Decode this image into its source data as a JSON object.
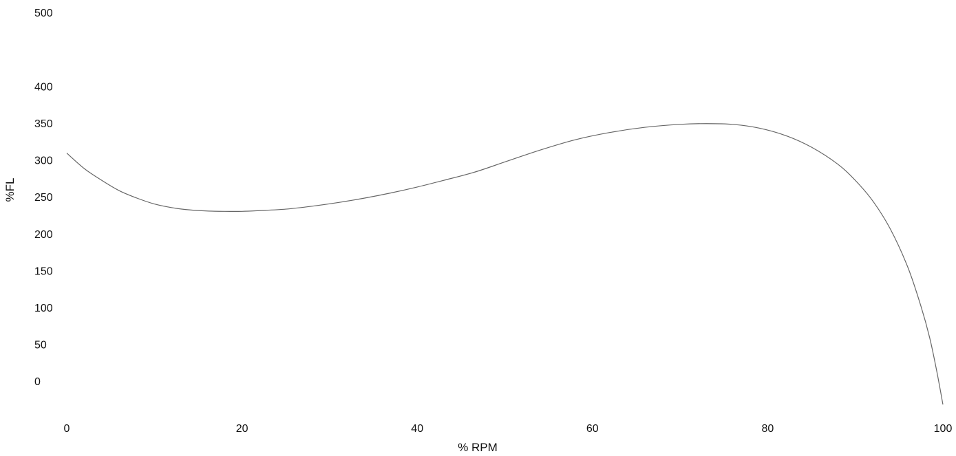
{
  "chart_data": {
    "type": "line",
    "title": "",
    "xlabel": "% RPM",
    "ylabel": "%FL",
    "xlim": [
      0,
      100
    ],
    "ylim": [
      -30,
      500
    ],
    "x_ticks": [
      0,
      20,
      40,
      60,
      80,
      100
    ],
    "y_ticks": [
      500,
      400,
      350,
      300,
      250,
      200,
      150,
      100,
      50,
      0
    ],
    "grid": false,
    "legend": "none",
    "series": [
      {
        "color": "#666666",
        "points": [
          [
            0,
            311
          ],
          [
            2,
            290
          ],
          [
            4,
            274
          ],
          [
            6,
            260
          ],
          [
            8,
            250
          ],
          [
            10,
            242
          ],
          [
            12,
            237
          ],
          [
            14,
            234
          ],
          [
            16,
            232.5
          ],
          [
            18,
            232
          ],
          [
            20,
            232
          ],
          [
            22,
            233
          ],
          [
            25,
            235
          ],
          [
            28,
            239
          ],
          [
            31,
            244
          ],
          [
            34,
            250
          ],
          [
            37,
            257
          ],
          [
            40,
            265
          ],
          [
            43,
            274
          ],
          [
            46.5,
            285
          ],
          [
            50,
            299
          ],
          [
            54,
            315
          ],
          [
            58,
            329
          ],
          [
            62,
            339
          ],
          [
            66,
            346
          ],
          [
            70,
            350
          ],
          [
            73,
            351
          ],
          [
            76,
            350
          ],
          [
            79,
            345
          ],
          [
            82,
            335
          ],
          [
            85,
            319
          ],
          [
            88,
            296
          ],
          [
            90,
            274
          ],
          [
            92,
            246
          ],
          [
            94,
            208
          ],
          [
            96,
            156
          ],
          [
            97.5,
            103
          ],
          [
            98.5,
            60
          ],
          [
            99.3,
            15
          ],
          [
            100,
            -30
          ]
        ]
      }
    ]
  }
}
